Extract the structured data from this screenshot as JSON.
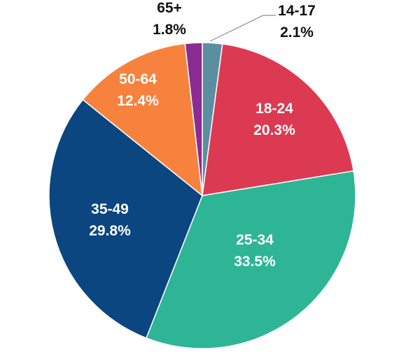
{
  "chart_data": {
    "type": "pie",
    "title": "",
    "slices": [
      {
        "label": "14-17",
        "value": 2.1,
        "value_label": "2.1%",
        "color": "#5b8fa0",
        "label_color": "#111111",
        "label_placement": "outside"
      },
      {
        "label": "18-24",
        "value": 20.3,
        "value_label": "20.3%",
        "color": "#dc3a52",
        "label_color": "#ffffff",
        "label_placement": "inside"
      },
      {
        "label": "25-34",
        "value": 33.5,
        "value_label": "33.5%",
        "color": "#2db595",
        "label_color": "#ffffff",
        "label_placement": "inside"
      },
      {
        "label": "35-49",
        "value": 29.8,
        "value_label": "29.8%",
        "color": "#0b4681",
        "label_color": "#ffffff",
        "label_placement": "inside"
      },
      {
        "label": "50-64",
        "value": 12.4,
        "value_label": "12.4%",
        "color": "#f6823e",
        "label_color": "#ffffff",
        "label_placement": "inside"
      },
      {
        "label": "65+",
        "value": 1.8,
        "value_label": "1.8%",
        "color": "#8a2c93",
        "label_color": "#111111",
        "label_placement": "outside"
      }
    ],
    "start_angle": "12 o'clock",
    "direction": "clockwise",
    "legend": "none"
  }
}
